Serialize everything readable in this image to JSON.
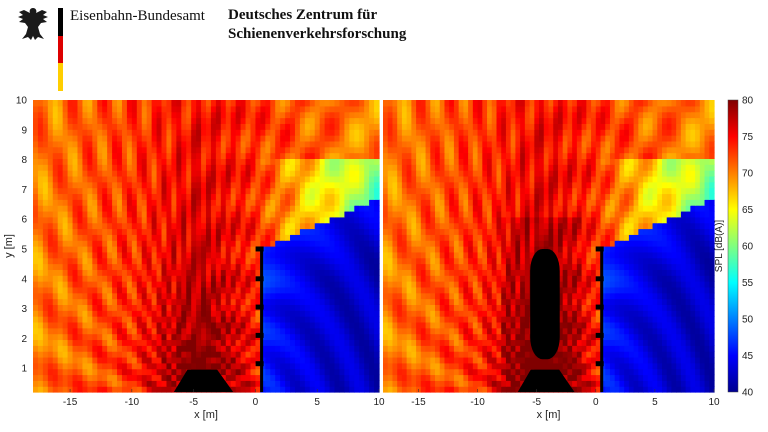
{
  "header": {
    "org_left": "Eisenbahn-Bundesamt",
    "org_right_line1": "Deutsches Zentrum für",
    "org_right_line2": "Schienenverkehrsforschung",
    "flag_colors": [
      "#000000",
      "#dd0000",
      "#ffce00"
    ]
  },
  "chart_data": [
    {
      "type": "heatmap",
      "title": "",
      "xlabel": "x [m]",
      "ylabel": "y [m]",
      "xlim": [
        -18,
        10
      ],
      "ylim": [
        0.2,
        10
      ],
      "xticks": [
        -15,
        -10,
        -5,
        0,
        5,
        10
      ],
      "yticks": [
        1,
        2,
        3,
        4,
        5,
        6,
        7,
        8,
        9,
        10
      ],
      "colorbar_label": "SPL [dB(A)]",
      "colorbar_ticks": [
        40,
        45,
        50,
        55,
        60,
        65,
        70,
        75,
        80
      ],
      "clim": [
        40,
        80
      ],
      "colormap": "jet",
      "source_x": -4.5,
      "barrier_x": 0.5,
      "barrier_height": 5,
      "vehicle_body_height": 0
    },
    {
      "type": "heatmap",
      "title": "",
      "xlabel": "x [m]",
      "ylabel": "",
      "xlim": [
        -18,
        10
      ],
      "ylim": [
        0.2,
        10
      ],
      "xticks": [
        -15,
        -10,
        -5,
        0,
        5,
        10
      ],
      "yticks": [],
      "colorbar_label": "SPL [dB(A)]",
      "colorbar_ticks": [
        40,
        45,
        50,
        55,
        60,
        65,
        70,
        75,
        80
      ],
      "clim": [
        40,
        80
      ],
      "colormap": "jet",
      "source_x": -4.5,
      "barrier_x": 0.5,
      "barrier_height": 5,
      "vehicle_body_height": 5
    }
  ]
}
